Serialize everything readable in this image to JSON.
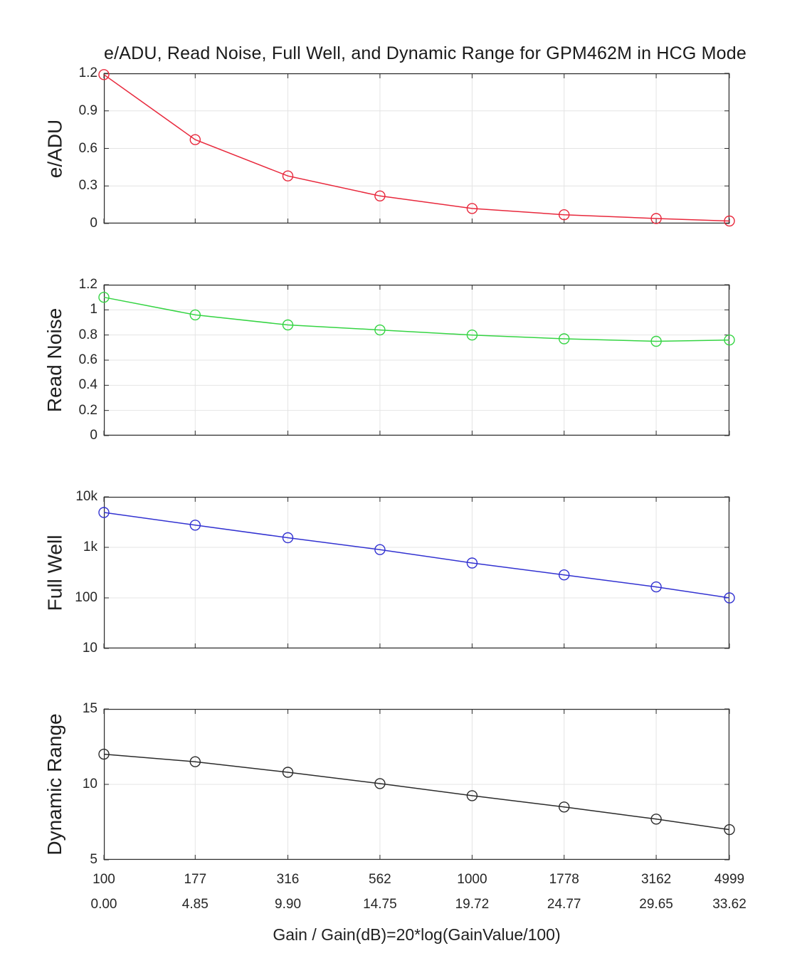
{
  "figure": {
    "title": "e/ADU, Read Noise, Full Well, and Dynamic Range for GPM462M in HCG Mode",
    "xlabel": "Gain / Gain(dB)=20*log(GainValue/100)"
  },
  "chart_data": {
    "type": "line",
    "x_axis": {
      "scale": "log",
      "range": [
        100,
        4999
      ],
      "gain_ticks": [
        "100",
        "177",
        "316",
        "562",
        "1000",
        "1778",
        "3162",
        "4999"
      ],
      "gain_db_ticks": [
        "0.00",
        "4.85",
        "9.90",
        "14.75",
        "19.72",
        "24.77",
        "29.65",
        "33.62"
      ],
      "x": [
        100,
        177,
        316,
        562,
        1000,
        1778,
        3162,
        4999
      ]
    },
    "grid": true,
    "legend": "none",
    "marker": "open-circle",
    "subplots": [
      {
        "ylabel": "e/ADU",
        "color": "#e8283c",
        "y_scale": "linear",
        "ylim": [
          0,
          1.2
        ],
        "yticks": [
          0,
          0.3,
          0.6,
          0.9,
          1.2
        ],
        "ytick_labels": [
          "0",
          "0.3",
          "0.6",
          "0.9",
          "1.2"
        ],
        "values": [
          1.19,
          0.67,
          0.38,
          0.22,
          0.12,
          0.07,
          0.04,
          0.02
        ]
      },
      {
        "ylabel": "Read Noise",
        "color": "#35d443",
        "y_scale": "linear",
        "ylim": [
          0,
          1.2
        ],
        "yticks": [
          0,
          0.2,
          0.4,
          0.6,
          0.8,
          1,
          1.2
        ],
        "ytick_labels": [
          "0",
          "0.2",
          "0.4",
          "0.6",
          "0.8",
          "1",
          "1.2"
        ],
        "values": [
          1.1,
          0.96,
          0.88,
          0.84,
          0.8,
          0.77,
          0.75,
          0.76
        ]
      },
      {
        "ylabel": "Full Well",
        "color": "#3232d1",
        "y_scale": "log",
        "ylim": [
          10,
          10000
        ],
        "yticks": [
          10,
          100,
          1000,
          10000
        ],
        "ytick_labels": [
          "10",
          "100",
          "1k",
          "10k"
        ],
        "values": [
          4900,
          2750,
          1550,
          900,
          490,
          285,
          165,
          100
        ]
      },
      {
        "ylabel": "Dynamic Range",
        "color": "#2b2b2b",
        "y_scale": "linear",
        "ylim": [
          5,
          15
        ],
        "yticks": [
          5,
          10,
          15
        ],
        "ytick_labels": [
          "5",
          "10",
          "15"
        ],
        "values": [
          12.0,
          11.5,
          10.8,
          10.05,
          9.25,
          8.5,
          7.7,
          7.0
        ]
      }
    ],
    "style": {
      "grid_color": "#e4e4e4",
      "axis_color": "#2e2e2e",
      "tick_text_color": "#262626"
    }
  }
}
